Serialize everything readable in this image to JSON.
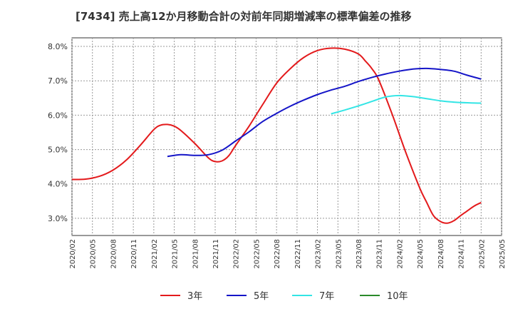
{
  "chart_data": {
    "type": "line",
    "title": "[7434]  売上高12か月移動合計の対前年同期増減率の標準偏差の推移",
    "xlabel": "",
    "ylabel": "",
    "x_ticks": [
      "2020/02",
      "2020/05",
      "2020/08",
      "2020/11",
      "2021/02",
      "2021/05",
      "2021/08",
      "2021/11",
      "2022/02",
      "2022/05",
      "2022/08",
      "2022/11",
      "2023/02",
      "2023/05",
      "2023/08",
      "2023/11",
      "2024/02",
      "2024/05",
      "2024/08",
      "2024/11",
      "2025/02",
      "2025/05"
    ],
    "y_ticks": [
      "3.0%",
      "4.0%",
      "5.0%",
      "6.0%",
      "7.0%",
      "8.0%"
    ],
    "ylim": [
      2.5,
      8.25
    ],
    "grid": true,
    "legend_position": "bottom",
    "series": [
      {
        "name": "3年",
        "color": "#e31a1c",
        "x": [
          "2020/02",
          "2020/04",
          "2020/06",
          "2020/08",
          "2020/10",
          "2020/12",
          "2021/02",
          "2021/03",
          "2021/04",
          "2021/05",
          "2021/06",
          "2021/08",
          "2021/10",
          "2021/11",
          "2021/12",
          "2022/01",
          "2022/02",
          "2022/04",
          "2022/06",
          "2022/08",
          "2022/10",
          "2022/12",
          "2023/02",
          "2023/04",
          "2023/06",
          "2023/08",
          "2023/09",
          "2023/10",
          "2023/11",
          "2024/01",
          "2024/03",
          "2024/05",
          "2024/06",
          "2024/07",
          "2024/08",
          "2024/09",
          "2024/10",
          "2024/11",
          "2024/12",
          "2025/01",
          "2025/02"
        ],
        "values": [
          4.13,
          4.14,
          4.22,
          4.4,
          4.7,
          5.12,
          5.58,
          5.71,
          5.73,
          5.68,
          5.55,
          5.18,
          4.76,
          4.65,
          4.67,
          4.82,
          5.12,
          5.69,
          6.32,
          6.93,
          7.35,
          7.68,
          7.88,
          7.95,
          7.92,
          7.78,
          7.58,
          7.35,
          7.02,
          6.0,
          4.89,
          3.88,
          3.47,
          3.08,
          2.91,
          2.86,
          2.93,
          3.08,
          3.22,
          3.36,
          3.46
        ]
      },
      {
        "name": "5年",
        "color": "#1515c8",
        "x": [
          "2021/04",
          "2021/06",
          "2021/08",
          "2021/10",
          "2021/12",
          "2022/02",
          "2022/04",
          "2022/06",
          "2022/08",
          "2022/10",
          "2022/12",
          "2023/02",
          "2023/04",
          "2023/06",
          "2023/08",
          "2023/10",
          "2023/12",
          "2024/02",
          "2024/04",
          "2024/06",
          "2024/08",
          "2024/10",
          "2024/12",
          "2025/02"
        ],
        "values": [
          4.8,
          4.85,
          4.83,
          4.85,
          4.98,
          5.25,
          5.52,
          5.82,
          6.05,
          6.26,
          6.44,
          6.6,
          6.73,
          6.84,
          6.98,
          7.1,
          7.2,
          7.28,
          7.34,
          7.36,
          7.33,
          7.28,
          7.16,
          7.05
        ]
      },
      {
        "name": "7年",
        "color": "#33e5e5",
        "x": [
          "2023/04",
          "2023/06",
          "2023/08",
          "2023/10",
          "2023/12",
          "2024/02",
          "2024/04",
          "2024/06",
          "2024/08",
          "2024/10",
          "2024/12",
          "2025/02"
        ],
        "values": [
          6.04,
          6.15,
          6.27,
          6.4,
          6.53,
          6.57,
          6.54,
          6.48,
          6.42,
          6.38,
          6.36,
          6.35
        ]
      },
      {
        "name": "10年",
        "color": "#2a8a2a",
        "x": [],
        "values": []
      }
    ]
  }
}
